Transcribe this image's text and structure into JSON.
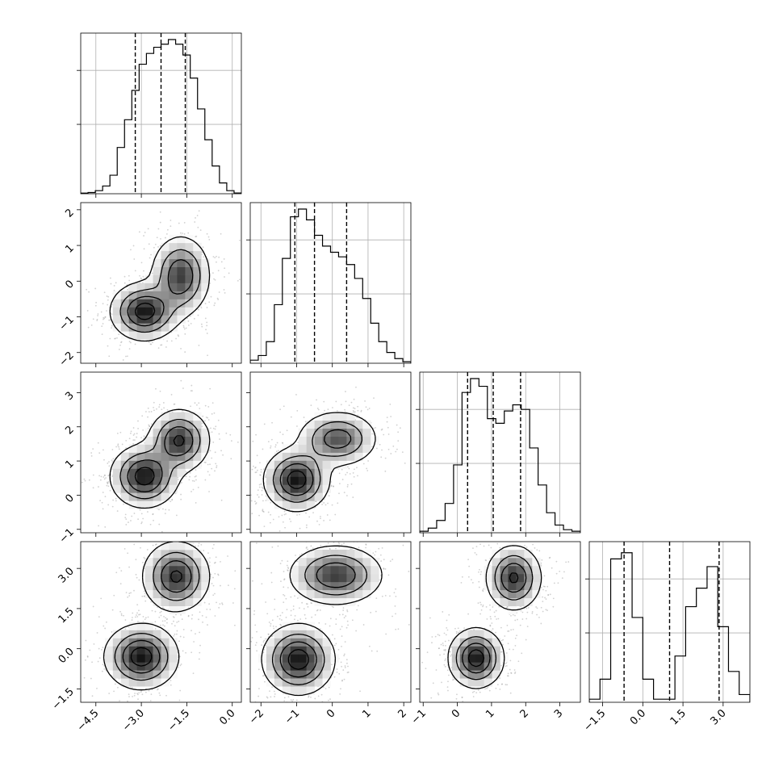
{
  "chart_data": {
    "type": "corner",
    "grid": true,
    "parameters": [
      {
        "range": [
          -5.0,
          0.3
        ],
        "ticks": [
          -4.5,
          -3.0,
          -1.5,
          0.0
        ],
        "tick_labels": [
          "−4.5",
          "−3.0",
          "−1.5",
          "0.0"
        ],
        "quantiles": [
          -3.2,
          -2.35,
          -1.55
        ],
        "hist": [
          0.004,
          0.008,
          0.02,
          0.05,
          0.12,
          0.3,
          0.48,
          0.67,
          0.84,
          0.91,
          0.95,
          0.97,
          1.0,
          0.97,
          0.9,
          0.75,
          0.55,
          0.35,
          0.18,
          0.07,
          0.02,
          0.005
        ]
      },
      {
        "range": [
          -2.3,
          2.2
        ],
        "ticks": [
          -2,
          -1,
          0,
          1,
          2
        ],
        "tick_labels": [
          "−2",
          "−1",
          "0",
          "1",
          "2"
        ],
        "quantiles": [
          -1.05,
          -0.5,
          0.4
        ],
        "hist": [
          0.02,
          0.05,
          0.14,
          0.38,
          0.68,
          0.95,
          1.0,
          0.93,
          0.83,
          0.76,
          0.72,
          0.69,
          0.64,
          0.55,
          0.42,
          0.26,
          0.14,
          0.07,
          0.03,
          0.01
        ]
      },
      {
        "range": [
          -1.1,
          3.6
        ],
        "ticks": [
          -1,
          0,
          1,
          2,
          3
        ],
        "tick_labels": [
          "−1",
          "0",
          "1",
          "2",
          "3"
        ],
        "quantiles": [
          0.3,
          1.05,
          1.85
        ],
        "hist": [
          0.01,
          0.03,
          0.08,
          0.19,
          0.44,
          0.91,
          1.0,
          0.95,
          0.74,
          0.71,
          0.79,
          0.83,
          0.8,
          0.55,
          0.31,
          0.13,
          0.05,
          0.02,
          0.01
        ]
      },
      {
        "range": [
          -2.0,
          4.0
        ],
        "ticks": [
          -1.5,
          0.0,
          1.5,
          3.0
        ],
        "tick_labels": [
          "−1.5",
          "0.0",
          "1.5",
          "3.0"
        ],
        "quantiles": [
          -0.7,
          1.0,
          2.85
        ],
        "hist": [
          0.02,
          0.15,
          0.93,
          0.97,
          0.55,
          0.15,
          0.02,
          0.02,
          0.3,
          0.62,
          0.74,
          0.88,
          0.49,
          0.2,
          0.05
        ]
      }
    ],
    "joint_modes": {
      "0-1": [
        {
          "c": [
            -2.9,
            -0.85
          ],
          "s": [
            0.55,
            0.4
          ],
          "w": 1.0
        },
        {
          "c": [
            -1.7,
            0.15
          ],
          "s": [
            0.48,
            0.55
          ],
          "w": 0.85
        }
      ],
      "0-2": [
        {
          "c": [
            -2.9,
            0.55
          ],
          "s": [
            0.55,
            0.45
          ],
          "w": 1.0
        },
        {
          "c": [
            -1.75,
            1.6
          ],
          "s": [
            0.5,
            0.45
          ],
          "w": 0.9
        }
      ],
      "1-2": [
        {
          "c": [
            -1.0,
            0.45
          ],
          "s": [
            0.45,
            0.45
          ],
          "w": 1.0
        },
        {
          "c": [
            0.15,
            1.65
          ],
          "s": [
            0.55,
            0.4
          ],
          "w": 0.75
        }
      ],
      "0-3": [
        {
          "c": [
            -3.0,
            -0.3
          ],
          "s": [
            0.6,
            0.6
          ],
          "w": 1.0
        },
        {
          "c": [
            -1.85,
            2.7
          ],
          "s": [
            0.55,
            0.65
          ],
          "w": 0.9
        }
      ],
      "1-3": [
        {
          "c": [
            -0.95,
            -0.4
          ],
          "s": [
            0.5,
            0.65
          ],
          "w": 1.0
        },
        {
          "c": [
            0.1,
            2.75
          ],
          "s": [
            0.65,
            0.55
          ],
          "w": 0.85
        }
      ],
      "2-3": [
        {
          "c": [
            0.55,
            -0.35
          ],
          "s": [
            0.4,
            0.55
          ],
          "w": 1.0
        },
        {
          "c": [
            1.65,
            2.65
          ],
          "s": [
            0.4,
            0.6
          ],
          "w": 0.9
        }
      ]
    },
    "contour_levels": [
      0.85,
      0.6,
      0.35,
      0.12
    ]
  }
}
